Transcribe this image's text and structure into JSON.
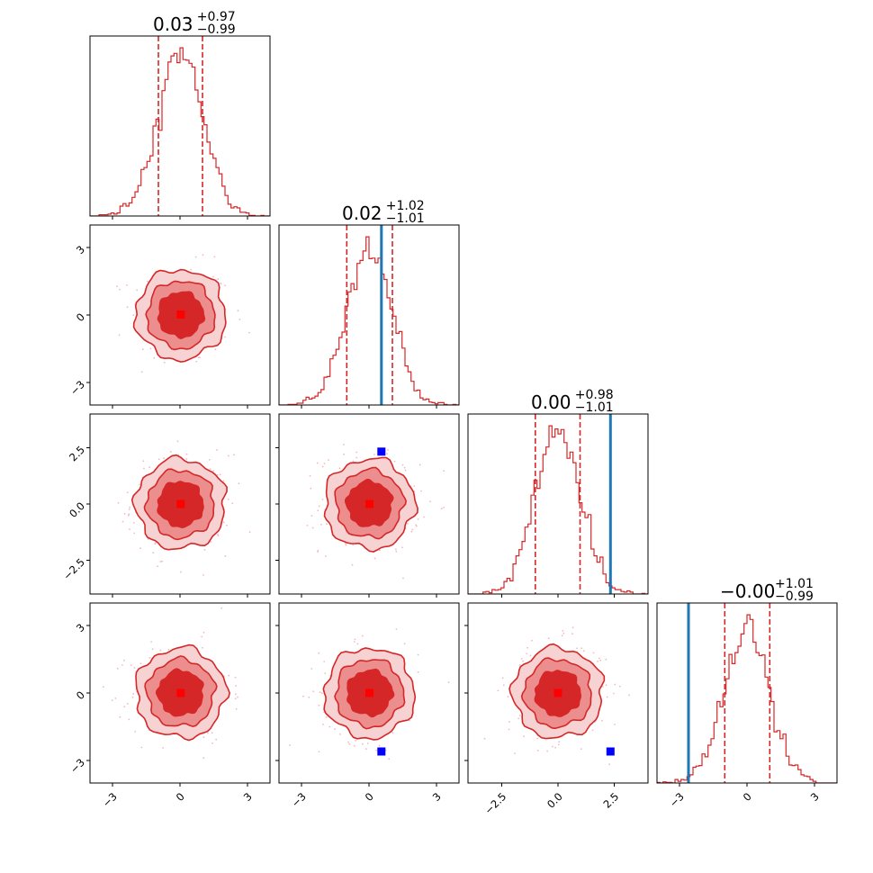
{
  "chart_data": {
    "type": "corner",
    "colors": {
      "samples": "#d62728",
      "truth_line": "#1f77b4",
      "truth_marker": "#0000ff",
      "median_marker": "#ff0000",
      "contour_fill_inner": "#d62728",
      "contour_fill_middle": "#ec8d8e",
      "contour_fill_outer": "#f7d2d3",
      "scatter_points": "#f2b8c2"
    },
    "parameters": [
      {
        "index": 0,
        "median": 0.03,
        "title_main": "0.03",
        "title_plus": "+0.97",
        "title_minus": "−0.99",
        "quantile_lower": -0.96,
        "quantile_upper": 1.0,
        "truth": null
      },
      {
        "index": 1,
        "median": 0.02,
        "title_main": "0.02",
        "title_plus": "+1.02",
        "title_minus": "−1.01",
        "quantile_lower": -0.99,
        "quantile_upper": 1.04,
        "truth": 0.55
      },
      {
        "index": 2,
        "median": 0.0,
        "title_main": "0.00",
        "title_plus": "+0.98",
        "title_minus": "−1.01",
        "quantile_lower": -1.01,
        "quantile_upper": 0.98,
        "truth": 2.33
      },
      {
        "index": 3,
        "median": -0.0,
        "title_main": "−0.00",
        "title_plus": "+1.01",
        "title_minus": "−0.99",
        "quantile_lower": -0.99,
        "quantile_upper": 1.01,
        "truth": -2.6
      }
    ],
    "axis_ranges": [
      [
        -4,
        4
      ],
      [
        -4,
        4
      ],
      [
        -4,
        4
      ],
      [
        -4,
        4
      ]
    ],
    "x_ticks": [
      {
        "values": [
          -3,
          0,
          3
        ],
        "labels": [
          "−3",
          "0",
          "3"
        ]
      },
      {
        "values": [
          -3,
          0,
          3
        ],
        "labels": [
          "−3",
          "0",
          "3"
        ]
      },
      {
        "values": [
          -2.5,
          0,
          2.5
        ],
        "labels": [
          "−2.5",
          "0.0",
          "2.5"
        ]
      },
      {
        "values": [
          -3,
          0,
          3
        ],
        "labels": [
          "−3",
          "0",
          "3"
        ]
      }
    ],
    "y_ticks": [
      null,
      {
        "values": [
          -3,
          0,
          3
        ],
        "labels": [
          "−3",
          "0",
          "3"
        ]
      },
      {
        "values": [
          -2.5,
          0,
          2.5
        ],
        "labels": [
          "−2.5",
          "0.0",
          "2.5"
        ]
      },
      {
        "values": [
          -3,
          0,
          3
        ],
        "labels": [
          "−3",
          "0",
          "3"
        ]
      }
    ],
    "contour_radii_sigma": [
      1.0,
      1.5,
      2.0
    ],
    "truth_markers": [
      {
        "row": 2,
        "col": 1,
        "x": 0.55,
        "y": 2.33
      },
      {
        "row": 3,
        "col": 1,
        "x": 0.55,
        "y": -2.6
      },
      {
        "row": 3,
        "col": 2,
        "x": 2.33,
        "y": -2.6
      }
    ],
    "histogram_bins": 60
  }
}
